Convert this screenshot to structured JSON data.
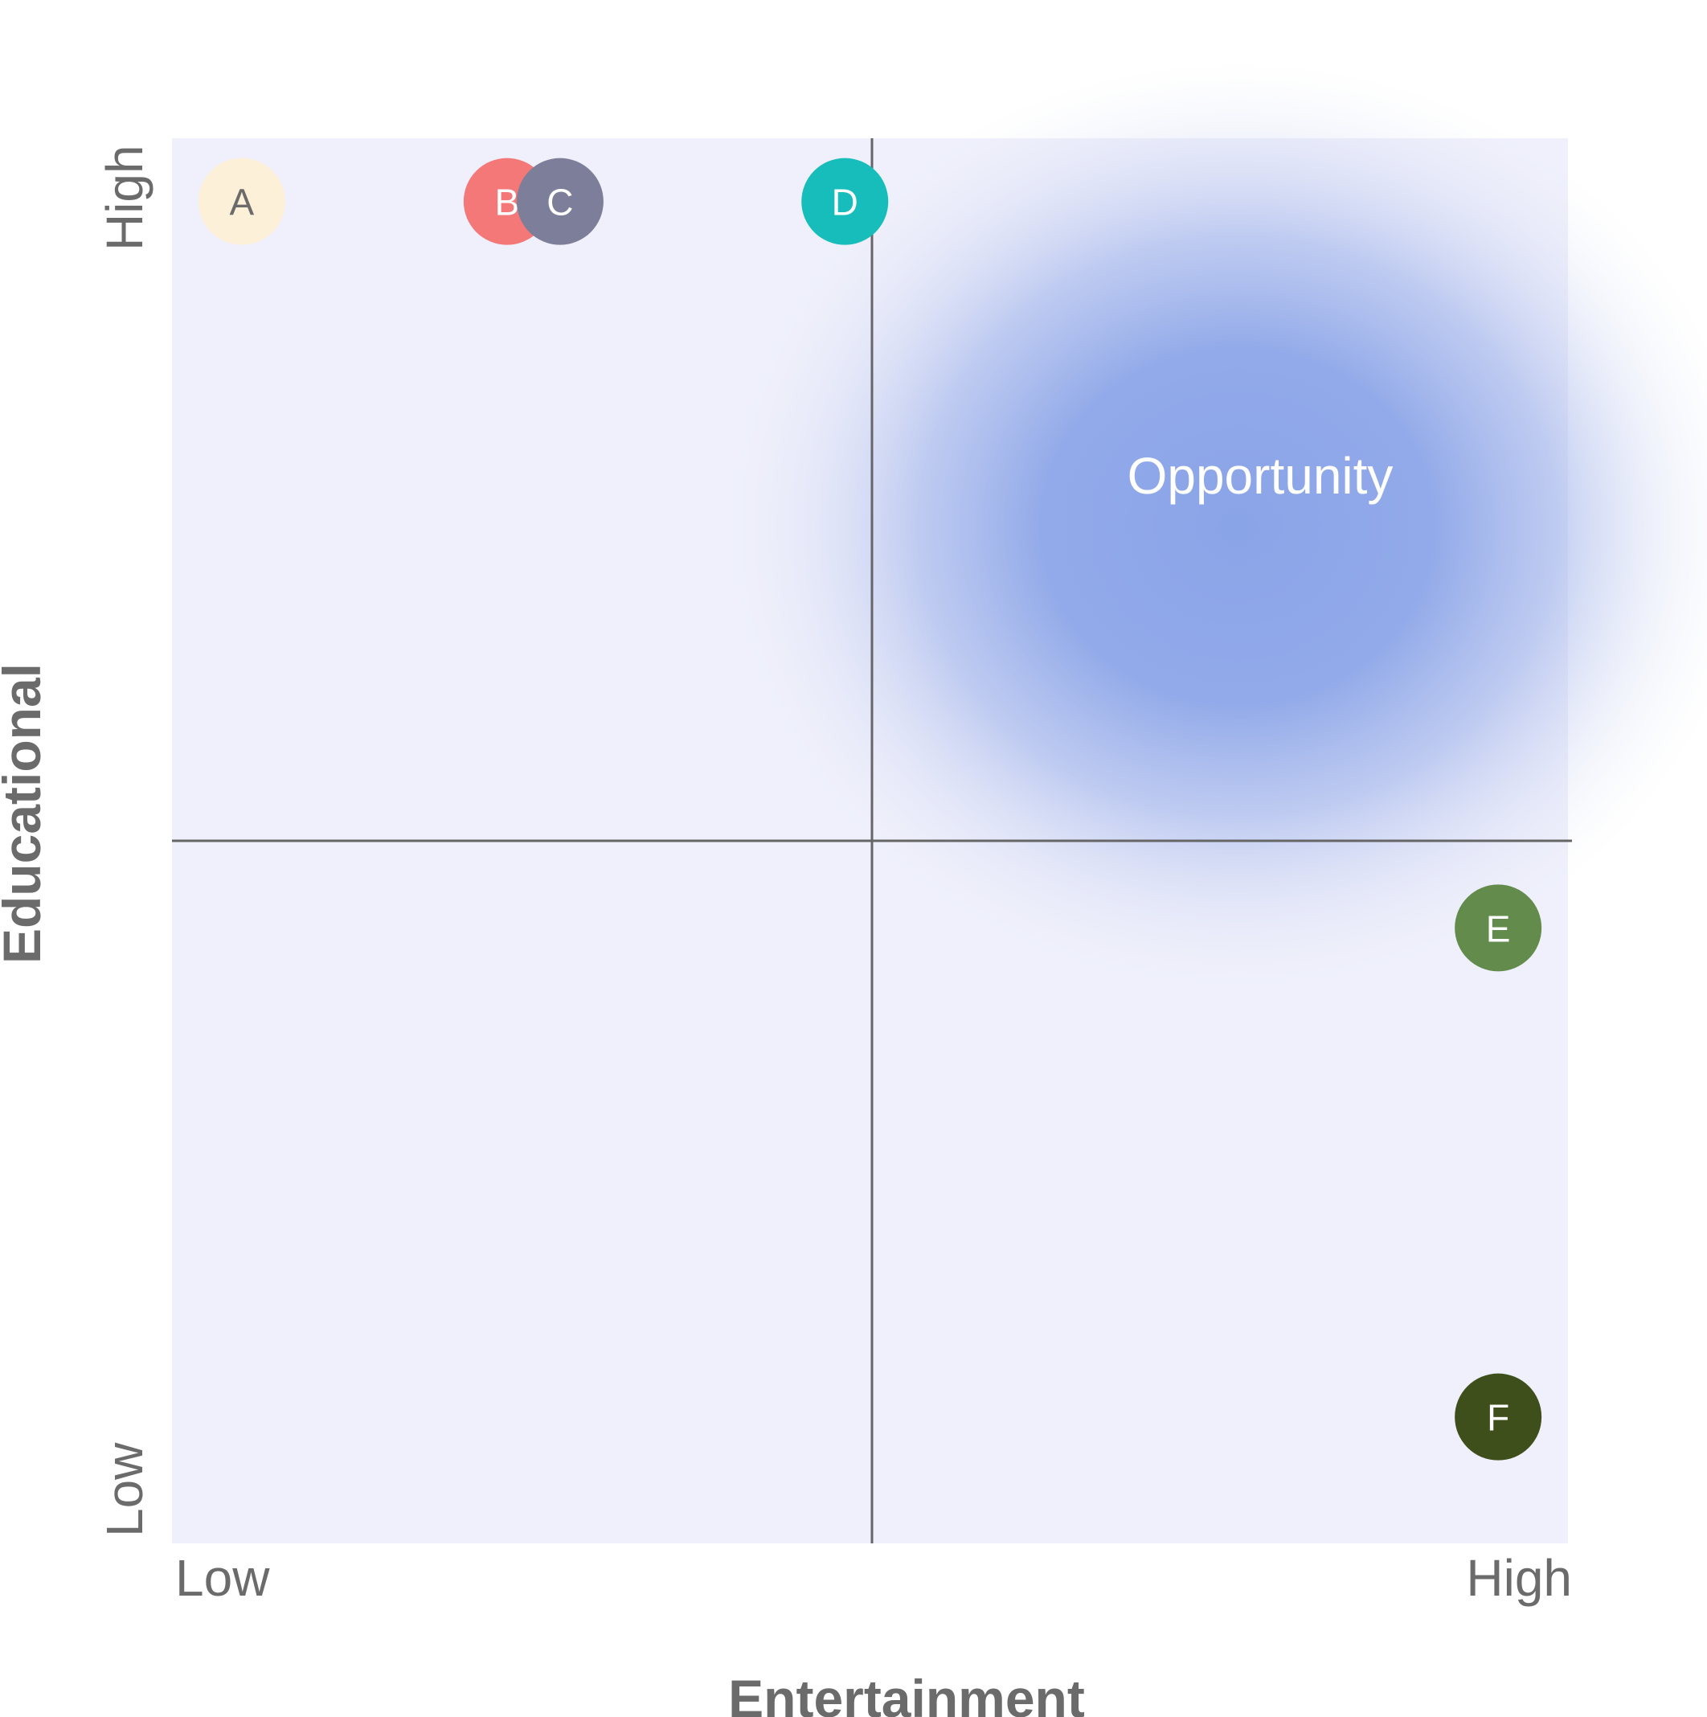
{
  "chart_data": {
    "type": "scatter",
    "title": "",
    "xlabel": "Entertainment",
    "ylabel": "Educational",
    "x_tick_labels": {
      "low": "Low",
      "high": "High"
    },
    "y_tick_labels": {
      "low": "Low",
      "high": "High"
    },
    "xlim": [
      0,
      10
    ],
    "ylim": [
      0,
      10
    ],
    "quadrant_split": {
      "x": 5,
      "y": 5
    },
    "grid": false,
    "legend": "none",
    "points": [
      {
        "label": "A",
        "x": 0.5,
        "y": 9.55,
        "color": "#fdf0d8",
        "text_color": "#6b6b6b"
      },
      {
        "label": "B",
        "x": 2.4,
        "y": 9.55,
        "color": "#f47878",
        "text_color": "#ffffff"
      },
      {
        "label": "C",
        "x": 2.78,
        "y": 9.55,
        "color": "#7d7e99",
        "text_color": "#ffffff"
      },
      {
        "label": "D",
        "x": 4.82,
        "y": 9.55,
        "color": "#17bdbb",
        "text_color": "#ffffff"
      },
      {
        "label": "E",
        "x": 9.5,
        "y": 4.38,
        "color": "#628b4c",
        "text_color": "#ffffff"
      },
      {
        "label": "F",
        "x": 9.5,
        "y": 0.9,
        "color": "#3f4f1b",
        "text_color": "#ffffff"
      }
    ],
    "annotations": [
      {
        "text": "Opportunity",
        "x": 7.7,
        "y": 7.4,
        "highlight_color": "#8aa4e8"
      }
    ],
    "colors": {
      "plot_background": "#eff0fb",
      "axis_lines": "#666666",
      "tick_text": "#6b6b6b",
      "axis_title": "#6b6b6b"
    }
  }
}
